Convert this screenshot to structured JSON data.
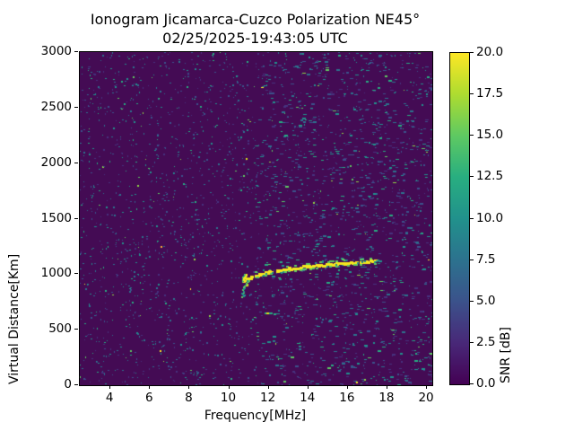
{
  "figure": {
    "title_line1": "Ionogram Jicamarca-Cuzco Polarization NE45°",
    "title_line2": "02/25/2025-19:43:05 UTC",
    "background_color": "#ffffff",
    "text_color": "#000000"
  },
  "chart_data": {
    "type": "heatmap",
    "title": "Ionogram Jicamarca-Cuzco Polarization NE45°",
    "subtitle": "02/25/2025-19:43:05 UTC",
    "xlabel": "Frequency[MHz]",
    "ylabel": "Virtual Distance[Km]",
    "xlim": [
      2.45,
      20.27
    ],
    "ylim": [
      0,
      3000
    ],
    "xticks": [
      4,
      6,
      8,
      10,
      12,
      14,
      16,
      18,
      20
    ],
    "yticks": [
      0,
      500,
      1000,
      1500,
      2000,
      2500,
      3000
    ],
    "grid": false,
    "colormap": "viridis",
    "background_value_color": "#440b54",
    "colorbar": {
      "label": "SNR [dB]",
      "min": 0.0,
      "max": 20.0,
      "tick_labels": [
        "0.0",
        "2.5",
        "5.0",
        "7.5",
        "10.0",
        "12.5",
        "15.0",
        "17.5",
        "20.0"
      ],
      "tick_values": [
        0.0,
        2.5,
        5.0,
        7.5,
        10.0,
        12.5,
        15.0,
        17.5,
        20.0
      ],
      "stops": [
        "#440154",
        "#482878",
        "#3b528b",
        "#2c728e",
        "#21918c",
        "#28ae80",
        "#5ec962",
        "#addc30",
        "#fde725"
      ]
    },
    "noise": {
      "description": "speckled background noise, SNR mostly 0-8 dB, denser horizontal dashes on right half",
      "count": 3200,
      "left_fraction": 0.45,
      "seed": 20250225,
      "palette": [
        "#46327e",
        "#3b528b",
        "#2c728e",
        "#21918c",
        "#27ad81",
        "#5ec962",
        "#8fd744",
        "#fde725"
      ],
      "weights": [
        0.22,
        0.26,
        0.24,
        0.16,
        0.08,
        0.028,
        0.01,
        0.002
      ]
    },
    "echo_trace_main": {
      "snr_db": 20,
      "core_color": "#f4e61e",
      "fringe_color": "#5ec962",
      "halo_color": "#21918c",
      "points": [
        [
          10.85,
          950
        ],
        [
          10.95,
          965
        ],
        [
          11.1,
          985
        ],
        [
          11.3,
          995
        ],
        [
          11.5,
          1005
        ],
        [
          11.8,
          1018
        ],
        [
          12.1,
          1028
        ],
        [
          12.4,
          1036
        ],
        [
          12.7,
          1044
        ],
        [
          13.0,
          1052
        ],
        [
          13.3,
          1059
        ],
        [
          13.6,
          1066
        ],
        [
          13.9,
          1072
        ],
        [
          14.2,
          1077
        ],
        [
          14.5,
          1082
        ],
        [
          14.8,
          1087
        ],
        [
          15.1,
          1092
        ],
        [
          15.4,
          1097
        ],
        [
          15.7,
          1101
        ],
        [
          16.0,
          1105
        ],
        [
          16.3,
          1109
        ],
        [
          16.6,
          1113
        ],
        [
          16.9,
          1116
        ],
        [
          17.1,
          1119
        ],
        [
          17.35,
          1121
        ]
      ],
      "tail_teal_end_freq": 17.7
    },
    "echo_cusp": {
      "description": "vertical cusp / hook at trace low-frequency end",
      "freq": 10.78,
      "vdist_range": [
        795,
        1005
      ],
      "yellow_vdist_range": [
        900,
        1000
      ]
    },
    "echo_secondary": {
      "snr_db": 8,
      "color": "#27ad81",
      "points": [
        [
          11.8,
          650
        ],
        [
          11.95,
          653
        ],
        [
          12.1,
          648
        ],
        [
          12.25,
          645
        ]
      ],
      "bright_point": [
        11.9,
        652
      ]
    },
    "bright_specks": [
      {
        "freq": 6.56,
        "vdist": 1248,
        "color": "#fdae38"
      },
      {
        "freq": 6.5,
        "vdist": 310,
        "color": "#fde725"
      },
      {
        "freq": 10.88,
        "vdist": 2040,
        "color": "#d8e219"
      },
      {
        "freq": 16.13,
        "vdist": 1975,
        "color": "#5ec962"
      },
      {
        "freq": 16.45,
        "vdist": 25,
        "color": "#fde725"
      },
      {
        "freq": 9.0,
        "vdist": 628,
        "color": "#8fd744"
      }
    ]
  }
}
